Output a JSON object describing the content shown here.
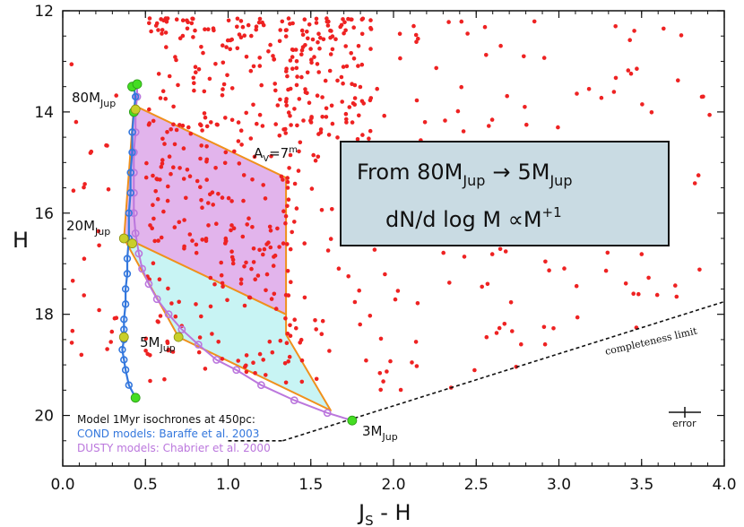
{
  "chart_data": {
    "type": "scatter",
    "title": "",
    "xlabel": "J",
    "xlabel_sub": "S",
    "xlabel_tail": " - H",
    "ylabel": "H",
    "xlim": [
      0.0,
      4.0
    ],
    "ylim": [
      21.0,
      12.0
    ],
    "x_ticks": [
      0.0,
      0.5,
      1.0,
      1.5,
      2.0,
      2.5,
      3.0,
      3.5,
      4.0
    ],
    "x_tick_labels": [
      "0.0",
      "0.5",
      "1.0",
      "1.5",
      "2.0",
      "2.5",
      "3.0",
      "3.5",
      "4.0"
    ],
    "y_ticks": [
      12,
      14,
      16,
      18,
      20
    ],
    "y_tick_labels": [
      "12",
      "14",
      "16",
      "18",
      "20"
    ],
    "colors": {
      "stars": "#ee2222",
      "cond": "#3377dd",
      "dusty": "#bb77dd",
      "magenta_fill": "#e2b4ec",
      "cyan_fill": "#c8f4f4",
      "outline": "#f0901c",
      "green": "#44dd22",
      "yellow": "#c9cf2a",
      "box_fill": "#c9dbe3"
    },
    "series": [
      {
        "name": "COND isochrone 1Myr",
        "x": [
          0.43,
          0.44,
          0.43,
          0.42,
          0.42,
          0.41,
          0.41,
          0.4,
          0.4,
          0.39,
          0.39,
          0.38,
          0.38,
          0.37,
          0.37,
          0.37,
          0.36,
          0.37,
          0.38,
          0.4,
          0.44
        ],
        "y": [
          13.5,
          13.7,
          14.0,
          14.4,
          14.8,
          15.2,
          15.6,
          16.0,
          16.5,
          16.9,
          17.2,
          17.5,
          17.8,
          18.1,
          18.3,
          18.5,
          18.7,
          18.9,
          19.1,
          19.4,
          19.65
        ]
      },
      {
        "name": "DUSTY isochrone 1Myr",
        "x": [
          0.45,
          0.45,
          0.44,
          0.44,
          0.43,
          0.43,
          0.43,
          0.43,
          0.44,
          0.46,
          0.48,
          0.52,
          0.57,
          0.64,
          0.72,
          0.82,
          0.93,
          1.05,
          1.2,
          1.4,
          1.6,
          1.75
        ],
        "y": [
          13.45,
          13.7,
          14.0,
          14.4,
          14.8,
          15.2,
          15.6,
          16.0,
          16.4,
          16.8,
          17.1,
          17.4,
          17.7,
          18.0,
          18.3,
          18.6,
          18.9,
          19.1,
          19.4,
          19.7,
          19.95,
          20.1
        ]
      }
    ],
    "mass_labels": [
      {
        "base": "80M",
        "sub": "Jup",
        "x": 0.43,
        "y": 13.9
      },
      {
        "base": "20M",
        "sub": "Jup",
        "x": 0.37,
        "y": 16.5
      },
      {
        "base": "5M",
        "sub": "Jup",
        "x": 0.7,
        "y": 18.45
      },
      {
        "base": "3M",
        "sub": "Jup",
        "x": 1.75,
        "y": 20.1
      }
    ],
    "reddening_label": {
      "base": "A",
      "sub": "V",
      "tail": "=7",
      "sup": "m"
    },
    "info_box": {
      "line1_base": "From 80M",
      "line1_sub": "Jup",
      "line1_arrow": "→",
      "line1_base2": "5M",
      "line1_sub2": "Jup",
      "line2_base": "dN/d log M ∝M",
      "line2_sup": "+1"
    },
    "completeness_label": "completeness limit",
    "completeness_line": {
      "x": [
        1.33,
        4.0
      ],
      "y": [
        20.5,
        17.75
      ]
    },
    "error_label": "error",
    "legend": [
      {
        "text": "Model 1Myr isochrones at 450pc:",
        "color": "#111111"
      },
      {
        "text": "COND models: Baraffe et al. 2003",
        "color": "#3377dd"
      },
      {
        "text": "DUSTY models: Chabrier et al. 2000",
        "color": "#bb77dd"
      }
    ],
    "regions": [
      {
        "name": "5-20 MJup reddened region",
        "x": [
          0.37,
          0.45,
          1.35,
          1.35,
          1.62,
          0.7,
          0.37
        ],
        "y": [
          16.5,
          16.6,
          18.0,
          18.4,
          19.9,
          18.45,
          16.5
        ]
      },
      {
        "name": "20-80 MJup reddened region",
        "x": [
          0.43,
          0.45,
          1.35,
          1.35,
          0.45,
          0.37,
          0.43
        ],
        "y": [
          13.9,
          13.9,
          15.3,
          18.0,
          16.6,
          16.5,
          13.9
        ]
      }
    ]
  }
}
